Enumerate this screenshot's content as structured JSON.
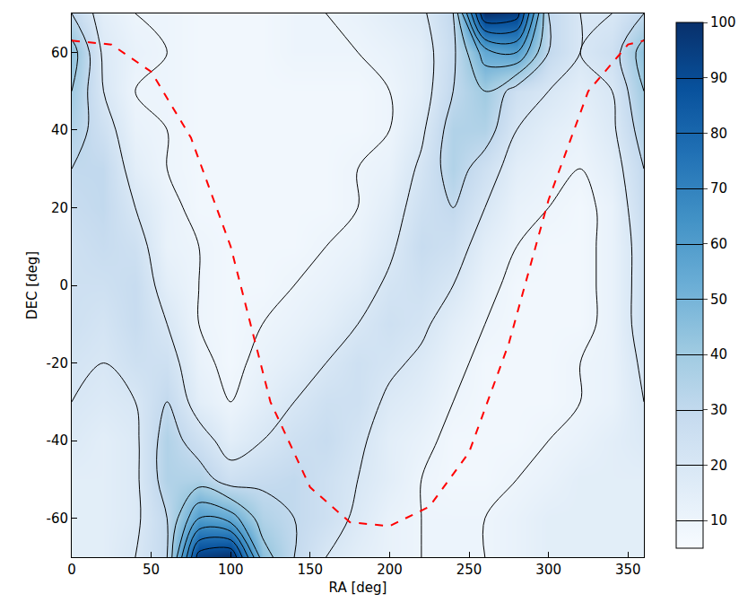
{
  "chart_data": {
    "type": "heatmap",
    "x_label": "RA [deg]",
    "y_label": "DEC [deg]",
    "xlim": [
      0,
      360
    ],
    "ylim": [
      -70,
      70
    ],
    "xticks": [
      0,
      50,
      100,
      150,
      200,
      250,
      300,
      350
    ],
    "yticks": [
      -60,
      -40,
      -20,
      0,
      20,
      40,
      60
    ],
    "x": [
      0,
      20,
      40,
      60,
      80,
      100,
      120,
      140,
      160,
      180,
      200,
      220,
      240,
      260,
      280,
      300,
      320,
      340,
      360
    ],
    "y": [
      -70,
      -60,
      -50,
      -40,
      -30,
      -20,
      -10,
      0,
      10,
      20,
      30,
      40,
      50,
      60,
      70
    ],
    "z": [
      [
        15,
        15,
        20,
        30,
        95,
        100,
        45,
        30,
        20,
        15,
        12,
        10,
        10,
        10,
        12,
        15,
        15,
        15,
        15
      ],
      [
        15,
        15,
        18,
        30,
        60,
        55,
        35,
        30,
        25,
        18,
        12,
        10,
        10,
        10,
        12,
        15,
        15,
        15,
        15
      ],
      [
        15,
        15,
        18,
        35,
        35,
        25,
        28,
        30,
        25,
        20,
        15,
        10,
        8,
        8,
        10,
        12,
        15,
        15,
        15
      ],
      [
        18,
        15,
        18,
        35,
        25,
        15,
        20,
        25,
        28,
        22,
        15,
        12,
        8,
        8,
        8,
        10,
        12,
        15,
        18
      ],
      [
        20,
        18,
        20,
        30,
        15,
        10,
        15,
        20,
        25,
        25,
        18,
        15,
        10,
        8,
        8,
        8,
        10,
        12,
        20
      ],
      [
        22,
        20,
        25,
        25,
        12,
        8,
        12,
        15,
        20,
        25,
        22,
        18,
        12,
        8,
        8,
        8,
        10,
        12,
        22
      ],
      [
        25,
        22,
        28,
        20,
        10,
        8,
        10,
        12,
        15,
        20,
        25,
        22,
        15,
        10,
        8,
        8,
        8,
        12,
        25
      ],
      [
        25,
        25,
        28,
        15,
        10,
        8,
        8,
        10,
        12,
        15,
        22,
        25,
        20,
        12,
        8,
        8,
        8,
        12,
        25
      ],
      [
        25,
        28,
        25,
        12,
        10,
        8,
        8,
        8,
        10,
        12,
        18,
        28,
        25,
        15,
        10,
        8,
        8,
        12,
        25
      ],
      [
        28,
        30,
        20,
        12,
        8,
        8,
        8,
        8,
        8,
        10,
        15,
        25,
        30,
        20,
        12,
        10,
        8,
        12,
        28
      ],
      [
        30,
        30,
        15,
        10,
        8,
        8,
        8,
        8,
        8,
        10,
        12,
        22,
        35,
        25,
        15,
        12,
        10,
        15,
        30
      ],
      [
        35,
        25,
        12,
        10,
        8,
        8,
        8,
        8,
        8,
        8,
        10,
        18,
        35,
        35,
        20,
        15,
        12,
        18,
        35
      ],
      [
        40,
        20,
        10,
        10,
        8,
        8,
        8,
        8,
        8,
        8,
        10,
        15,
        30,
        40,
        25,
        20,
        15,
        20,
        40
      ],
      [
        45,
        18,
        12,
        10,
        8,
        8,
        8,
        10,
        10,
        10,
        12,
        15,
        28,
        55,
        60,
        30,
        20,
        25,
        45
      ],
      [
        30,
        15,
        10,
        10,
        8,
        8,
        8,
        10,
        10,
        12,
        15,
        18,
        30,
        100,
        95,
        30,
        20,
        20,
        30
      ]
    ],
    "colorbar": {
      "range": [
        5,
        100
      ],
      "ticks": [
        10,
        20,
        30,
        40,
        50,
        60,
        70,
        80,
        90,
        100
      ]
    },
    "series": [
      {
        "color": "#ff0000",
        "line_style": "dashed",
        "x": [
          0,
          25,
          50,
          75,
          100,
          125,
          150,
          175,
          200,
          225,
          250,
          275,
          300,
          325,
          350,
          360
        ],
        "values": [
          63,
          62,
          55,
          38,
          10,
          -30,
          -52,
          -61,
          -62,
          -57,
          -43,
          -15,
          22,
          50,
          62,
          63
        ]
      }
    ]
  }
}
